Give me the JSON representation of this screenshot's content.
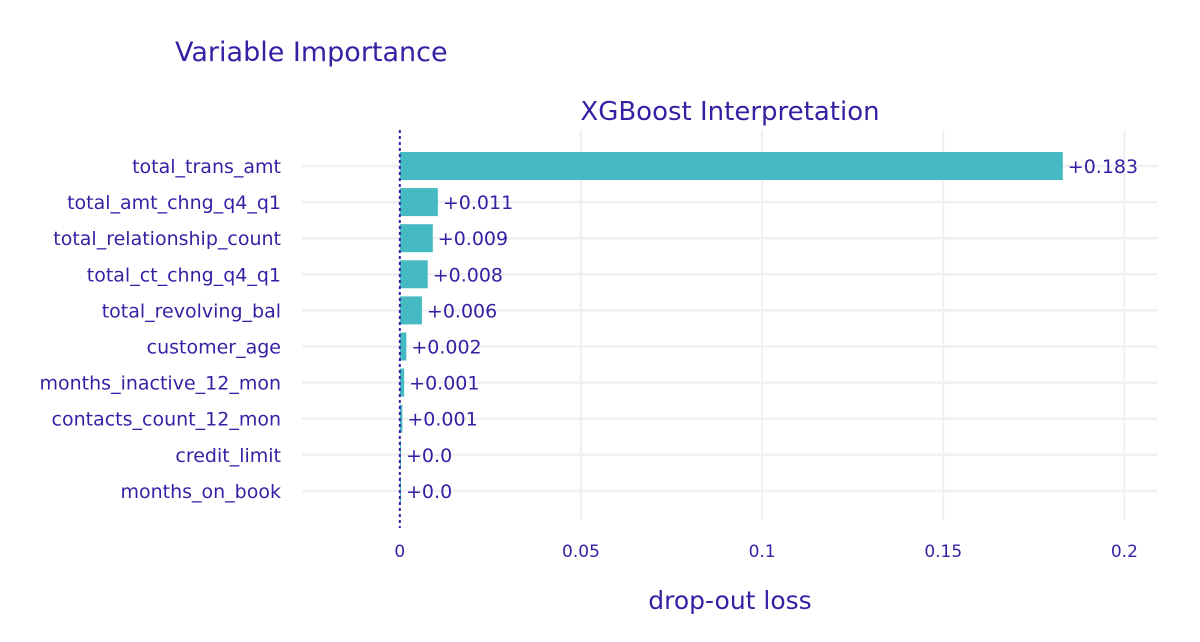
{
  "chart_data": {
    "type": "bar",
    "orientation": "horizontal",
    "title": "Variable Importance",
    "subtitle": "XGBoost Interpretation",
    "xlabel": "drop-out loss",
    "ylabel": "",
    "categories": [
      "total_trans_amt",
      "total_amt_chng_q4_q1",
      "total_relationship_count",
      "total_ct_chng_q4_q1",
      "total_revolving_bal",
      "customer_age",
      "months_inactive_12_mon",
      "contacts_count_12_mon",
      "credit_limit",
      "months_on_book"
    ],
    "values": [
      0.183,
      0.0105,
      0.0091,
      0.0077,
      0.0061,
      0.0018,
      0.0012,
      0.0007,
      0.0002,
      0.0002
    ],
    "value_labels": [
      "+0.183",
      "+0.011",
      "+0.009",
      "+0.008",
      "+0.006",
      "+0.002",
      "+0.001",
      "+0.001",
      "+0.0",
      "+0.0"
    ],
    "xlim": [
      -0.027,
      0.209
    ],
    "xticks": [
      0,
      0.05,
      0.1,
      0.15,
      0.2
    ],
    "xtick_labels": [
      "0",
      "0.05",
      "0.1",
      "0.15",
      "0.2"
    ],
    "baseline": 0,
    "grid": true,
    "colors": {
      "bar": "#46bac2",
      "text": "#371ea3",
      "grid": "#f0f0f4",
      "baseline": "#371ea3"
    }
  }
}
